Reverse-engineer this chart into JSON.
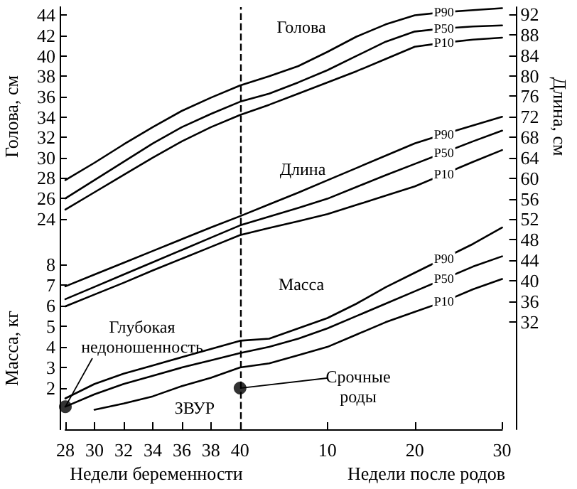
{
  "chart_data": {
    "type": "line",
    "xlabel": "Недели беременности",
    "ylabel": "Масса, кг",
    "y2label": "Длина, см",
    "y3label": "Голова, см",
    "categories": [
      "28",
      "30",
      "32",
      "34",
      "36",
      "38",
      "40",
      null,
      null,
      "10",
      null,
      null,
      "20",
      null,
      null,
      "30"
    ],
    "ylim": [
      0,
      20.5
    ],
    "yticks": [
      2,
      3,
      4,
      5,
      6,
      7,
      8
    ],
    "y2lim": [
      11,
      93.4
    ],
    "y2ticks": [
      32,
      36,
      40,
      44,
      48,
      52,
      56,
      60,
      64,
      68,
      72,
      76,
      80,
      84,
      88,
      92
    ],
    "y3lim": [
      3.3,
      44.8
    ],
    "y3ticks": [
      24,
      26,
      28,
      30,
      32,
      34,
      36,
      38,
      40,
      42,
      44
    ],
    "grid": false,
    "marker": "none",
    "line_style": "solid",
    "ref_lines": [
      {
        "axis": "x",
        "value": "40",
        "line_style": "dashed",
        "color": "#000000"
      }
    ],
    "annotations": [
      "Голова",
      "Длина",
      "Масса",
      {
        "text": "Глубокая недоношенность",
        "x": "28",
        "y": 1.1
      },
      "ЗВУР",
      {
        "text": "Срочные роды",
        "x": "40",
        "y": 2
      },
      "Недели после родов"
    ],
    "series": [
      {
        "name": "P90",
        "color": "#000000",
        "axis": "y3",
        "values": [
          27.8,
          29.5,
          31.3,
          33.0,
          34.6,
          35.9,
          37.1,
          38.0,
          39.0,
          40.4,
          41.9,
          43.1,
          44.0,
          44.3,
          44.5,
          44.7
        ]
      },
      {
        "name": "P50",
        "color": "#000000",
        "axis": "y3",
        "values": [
          26.0,
          27.8,
          29.6,
          31.4,
          33.0,
          34.3,
          35.5,
          36.3,
          37.4,
          38.6,
          40.0,
          41.4,
          42.4,
          42.7,
          42.9,
          43.0
        ]
      },
      {
        "name": "P10",
        "color": "#000000",
        "axis": "y3",
        "values": [
          24.9,
          26.6,
          28.3,
          30.0,
          31.6,
          33.0,
          34.2,
          35.2,
          36.3,
          37.4,
          38.5,
          39.7,
          40.9,
          41.3,
          41.6,
          41.8
        ]
      },
      {
        "name": "P90",
        "color": "#000000",
        "axis": "y2",
        "values": [
          38.9,
          41.2,
          43.5,
          45.8,
          48.1,
          50.4,
          52.6,
          54.9,
          57.2,
          59.6,
          62.0,
          64.4,
          66.8,
          68.6,
          70.3,
          72.0
        ]
      },
      {
        "name": "P50",
        "color": "#000000",
        "axis": "y2",
        "values": [
          36.4,
          38.8,
          41.2,
          43.6,
          46.0,
          48.4,
          50.8,
          52.5,
          54.2,
          56.0,
          58.3,
          60.6,
          62.8,
          65.0,
          67.2,
          69.3
        ]
      },
      {
        "name": "P10",
        "color": "#000000",
        "axis": "y2",
        "values": [
          35.0,
          37.3,
          39.6,
          42.0,
          44.3,
          46.6,
          48.9,
          50.3,
          51.6,
          53.0,
          54.8,
          56.6,
          58.4,
          60.8,
          63.2,
          65.5
        ]
      },
      {
        "name": "P90",
        "color": "#000000",
        "axis": "y",
        "values": [
          1.5,
          2.2,
          2.7,
          3.1,
          3.5,
          3.9,
          4.3,
          4.4,
          4.9,
          5.4,
          6.1,
          6.9,
          7.6,
          8.3,
          9.0,
          9.8
        ]
      },
      {
        "name": "P50",
        "color": "#000000",
        "axis": "y",
        "values": [
          1.1,
          1.7,
          2.2,
          2.6,
          3.0,
          3.35,
          3.7,
          4.0,
          4.4,
          4.9,
          5.5,
          6.1,
          6.7,
          7.3,
          7.9,
          8.4
        ]
      },
      {
        "name": "P10",
        "color": "#000000",
        "axis": "y",
        "values": [
          null,
          0.95,
          1.25,
          1.6,
          2.1,
          2.5,
          3.0,
          3.2,
          3.6,
          4.0,
          4.6,
          5.2,
          5.7,
          6.2,
          6.8,
          7.3
        ]
      },
      {
        "type": "scatter",
        "marker": "circle",
        "color": "#000000",
        "axis": "y",
        "x": [
          "28",
          "40"
        ],
        "values": [
          1.1,
          2
        ]
      }
    ]
  }
}
